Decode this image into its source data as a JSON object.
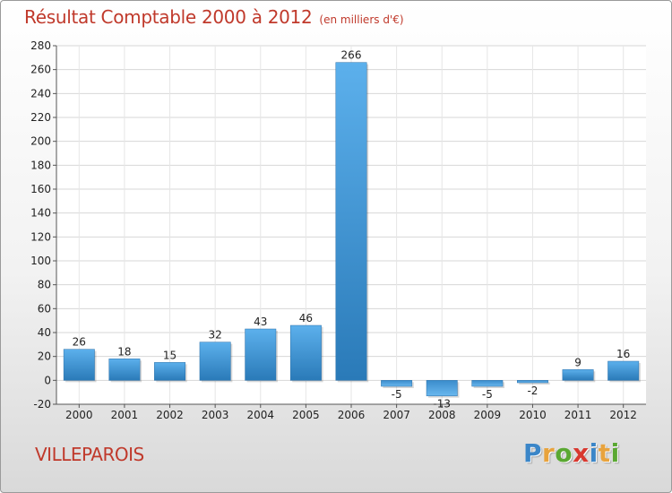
{
  "chart_data": {
    "type": "bar",
    "title": "Résultat Comptable 2000 à 2012",
    "unit_label": "(en milliers d'€)",
    "categories": [
      "2000",
      "2001",
      "2002",
      "2003",
      "2004",
      "2005",
      "2006",
      "2007",
      "2008",
      "2009",
      "2010",
      "2011",
      "2012"
    ],
    "values": [
      26,
      18,
      15,
      32,
      43,
      46,
      266,
      -5,
      -13,
      -5,
      -2,
      9,
      16
    ],
    "ylim": [
      -20,
      280
    ],
    "yticks": [
      -20,
      0,
      20,
      40,
      60,
      80,
      100,
      120,
      140,
      160,
      180,
      200,
      220,
      240,
      260,
      280
    ],
    "grid": true,
    "xlabel": "",
    "ylabel": "",
    "bar_color": "#3f94d6"
  },
  "location": "VILLEPAROIS",
  "logo": {
    "letters": [
      "P",
      "r",
      "o",
      "x",
      "i",
      "t",
      "i"
    ],
    "colors": [
      "#3b86c8",
      "#e8a33d",
      "#5aa832",
      "#d8382f",
      "#3b86c8",
      "#e8a33d",
      "#5aa832"
    ]
  }
}
